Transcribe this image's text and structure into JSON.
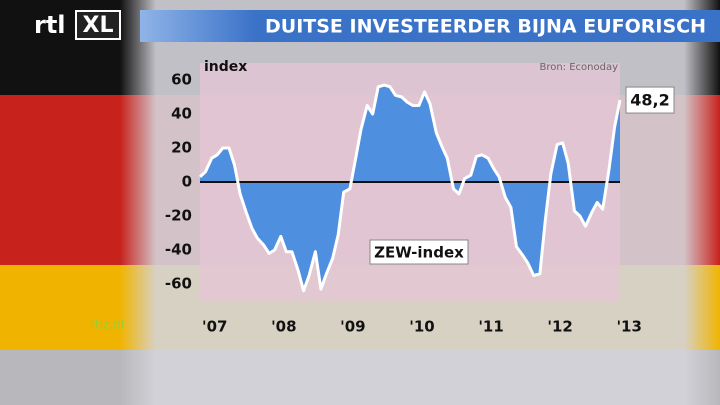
{
  "chart_data": {
    "type": "area",
    "title": "DUITSE INVESTEERDER BIJNA EUFORISCH",
    "brand": "rtl",
    "brand_suffix": "XL",
    "website": "rtlz.nl",
    "source": "Bron: Econoday",
    "y_label": "index",
    "annotation": "ZEW-index",
    "x": [
      2007.0,
      2007.08,
      2007.17,
      2007.25,
      2007.33,
      2007.42,
      2007.5,
      2007.58,
      2007.67,
      2007.75,
      2007.83,
      2007.92,
      2008.0,
      2008.08,
      2008.17,
      2008.25,
      2008.33,
      2008.42,
      2008.5,
      2008.58,
      2008.67,
      2008.75,
      2008.83,
      2008.92,
      2009.0,
      2009.08,
      2009.17,
      2009.25,
      2009.33,
      2009.42,
      2009.5,
      2009.58,
      2009.67,
      2009.75,
      2009.83,
      2009.92,
      2010.0,
      2010.08,
      2010.17,
      2010.25,
      2010.33,
      2010.42,
      2010.5,
      2010.58,
      2010.67,
      2010.75,
      2010.83,
      2010.92,
      2011.0,
      2011.08,
      2011.17,
      2011.25,
      2011.33,
      2011.42,
      2011.5,
      2011.58,
      2011.67,
      2011.75,
      2011.83,
      2011.92,
      2012.0,
      2012.08,
      2012.17,
      2012.25,
      2012.33,
      2012.42,
      2012.5,
      2012.58,
      2012.67,
      2012.75,
      2012.83,
      2012.92,
      2013.0,
      2013.08
    ],
    "series": [
      {
        "name": "ZEW-index",
        "color": "#4f8fe0",
        "line_color": "#ffffff",
        "values": [
          3,
          6,
          14,
          16,
          20,
          20,
          10,
          -7,
          -18,
          -27,
          -33,
          -37,
          -42,
          -40,
          -32,
          -41,
          -41,
          -52,
          -64,
          -55,
          -41,
          -63,
          -54,
          -45,
          -31,
          -6,
          -4,
          13,
          31,
          45,
          40,
          56,
          57,
          56,
          51,
          50,
          47,
          45,
          45,
          53,
          46,
          29,
          21,
          14,
          -4,
          -7,
          2,
          4,
          15,
          16,
          14,
          8,
          3,
          -9,
          -15,
          -38,
          -43,
          -48,
          -55,
          -54,
          -22,
          5,
          22,
          23,
          11,
          -17,
          -20,
          -26,
          -18,
          -12,
          -16,
          7,
          32,
          48.2
        ],
        "value_labels": [
          null,
          null,
          null,
          null,
          null,
          null,
          null,
          null,
          null,
          null,
          null,
          null,
          null,
          null,
          null,
          null,
          null,
          null,
          null,
          null,
          null,
          null,
          null,
          null,
          null,
          null,
          null,
          null,
          null,
          null,
          null,
          null,
          null,
          null,
          null,
          null,
          null,
          null,
          null,
          null,
          null,
          null,
          null,
          null,
          null,
          null,
          null,
          null,
          null,
          null,
          null,
          null,
          null,
          null,
          null,
          null,
          null,
          null,
          null,
          null,
          null,
          null,
          null,
          null,
          null,
          null,
          null,
          null,
          null,
          null,
          null,
          null,
          null,
          "48,2"
        ]
      }
    ],
    "xlim": [
      2007,
      2013.08
    ],
    "xticks": [
      {
        "value": 2007,
        "label": "'07"
      },
      {
        "value": 2008,
        "label": "'08"
      },
      {
        "value": 2009,
        "label": "'09"
      },
      {
        "value": 2010,
        "label": "'10"
      },
      {
        "value": 2011,
        "label": "'11"
      },
      {
        "value": 2012,
        "label": "'12"
      },
      {
        "value": 2013,
        "label": "'13"
      }
    ],
    "ylim": [
      -70,
      70
    ],
    "yticks": [
      60,
      40,
      20,
      0,
      -20,
      -40,
      -60
    ]
  }
}
